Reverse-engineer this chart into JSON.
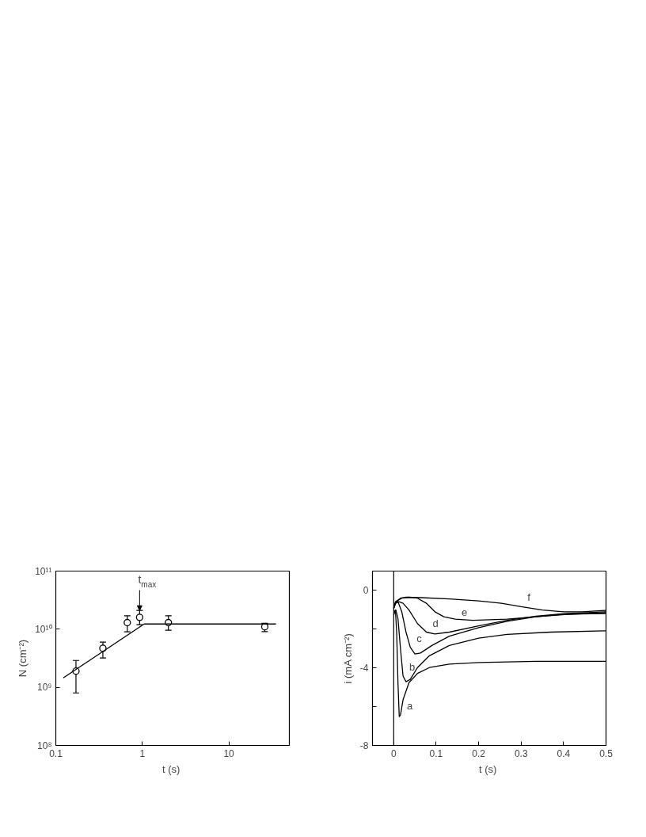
{
  "chart_data": [
    {
      "type": "scatter",
      "xlabel": "t  (s)",
      "ylabel": "N (cm⁻²)",
      "log": "xy",
      "grid": false,
      "xlim": [
        0.1,
        50
      ],
      "ylim": [
        100000000.0,
        100000000000.0
      ],
      "xticks": [
        0.1,
        1,
        10
      ],
      "yticks": [
        {
          "value": 100000000.0,
          "label": "10⁸"
        },
        {
          "value": 1000000000.0,
          "label": "10⁹"
        },
        {
          "value": 10000000000.0,
          "label": "10¹⁰"
        },
        {
          "value": 100000000000.0,
          "label": "10¹¹"
        }
      ],
      "annotations": [
        {
          "text": "t$_{max}$",
          "x": 0.93,
          "y": 21000000000.0
        }
      ],
      "series": [
        {
          "type": "scatter",
          "marker": "circle",
          "color": "#000000",
          "x": [
            0.171,
            0.35,
            0.67,
            0.93,
            2.0,
            26
          ],
          "values": [
            1900000000.0,
            4700000000.0,
            13000000000.0,
            16000000000.0,
            13000000000.0,
            11000000000.0
          ],
          "errors": [
            [
              800000000.0,
              2900000000.0
            ],
            [
              3200000000.0,
              6000000000.0
            ],
            [
              9000000000.0,
              17000000000.0
            ],
            [
              12000000000.0,
              21000000000.0
            ],
            [
              9600000000.0,
              17000000000.0
            ],
            [
              9100000000.0,
              12600000000.0
            ]
          ]
        },
        {
          "type": "line",
          "color": "#000000",
          "x": [
            0.122,
            1.05,
            35
          ],
          "values": [
            1450000000.0,
            12300000000.0,
            12300000000.0
          ]
        }
      ]
    },
    {
      "type": "line",
      "xlabel": "t  (s)",
      "ylabel": "i (mA cm⁻²)",
      "grid": false,
      "line_style": "solid",
      "xlim": [
        -0.05,
        0.5
      ],
      "ylim": [
        -8,
        1
      ],
      "xticks": [
        0,
        0.1,
        0.2,
        0.3,
        0.4,
        0.5
      ],
      "yticks": [
        -8,
        {
          "value": -6,
          "label": null
        },
        -4,
        {
          "value": -2,
          "label": null
        },
        0
      ],
      "ref_lines": [
        {
          "axis": "x",
          "value": 0,
          "color": "#000000"
        }
      ],
      "annotations": [
        {
          "text": "a",
          "x": 0.016,
          "y": -6.42
        },
        {
          "text": "b",
          "x": 0.022,
          "y": -4.42
        },
        {
          "text": "c",
          "x": 0.039,
          "y": -2.93
        },
        {
          "text": "d",
          "x": 0.077,
          "y": -2.15
        },
        {
          "text": "e",
          "x": 0.145,
          "y": -1.48
        },
        {
          "text": "f",
          "x": 0.3,
          "y": -0.84
        }
      ],
      "series": [
        {
          "color": "#000000",
          "x": [
            0,
            0.004,
            0.007,
            0.01,
            0.013,
            0.016,
            0.022,
            0.036,
            0.056,
            0.084,
            0.131,
            0.2,
            0.335,
            0.5
          ],
          "values": [
            -1.27,
            -1.01,
            -2.15,
            -4.76,
            -6.51,
            -6.42,
            -5.64,
            -4.76,
            -4.28,
            -3.98,
            -3.8,
            -3.72,
            -3.66,
            -3.66
          ]
        },
        {
          "color": "#000000",
          "x": [
            0,
            0.002,
            0.005,
            0.01,
            0.016,
            0.022,
            0.029,
            0.039,
            0.056,
            0.084,
            0.131,
            0.2,
            0.267,
            0.37,
            0.5
          ],
          "values": [
            -1.0,
            -1.1,
            -1.01,
            -1.45,
            -3.02,
            -4.42,
            -4.71,
            -4.59,
            -3.98,
            -3.37,
            -2.84,
            -2.46,
            -2.27,
            -2.15,
            -2.08
          ]
        },
        {
          "color": "#000000",
          "x": [
            0,
            0.004,
            0.01,
            0.019,
            0.029,
            0.039,
            0.05,
            0.063,
            0.09,
            0.131,
            0.2,
            0.267,
            0.335,
            0.403,
            0.5
          ],
          "values": [
            -0.92,
            -0.58,
            -0.58,
            -1.1,
            -2.15,
            -2.93,
            -3.28,
            -3.23,
            -2.84,
            -2.36,
            -1.92,
            -1.59,
            -1.36,
            -1.24,
            -1.15
          ]
        },
        {
          "color": "#000000",
          "x": [
            0,
            0.005,
            0.012,
            0.022,
            0.036,
            0.056,
            0.077,
            0.097,
            0.131,
            0.2,
            0.267,
            0.335,
            0.403,
            0.5
          ],
          "values": [
            -0.92,
            -0.66,
            -0.58,
            -0.66,
            -1.01,
            -1.71,
            -2.15,
            -2.25,
            -2.15,
            -1.83,
            -1.54,
            -1.33,
            -1.19,
            -1.1
          ]
        },
        {
          "color": "#000000",
          "x": [
            0,
            0.005,
            0.019,
            0.036,
            0.056,
            0.077,
            0.097,
            0.118,
            0.145,
            0.186,
            0.267,
            0.335,
            0.403,
            0.5
          ],
          "values": [
            -0.92,
            -0.58,
            -0.4,
            -0.35,
            -0.4,
            -0.66,
            -1.1,
            -1.36,
            -1.48,
            -1.54,
            -1.48,
            -1.36,
            -1.22,
            -1.19
          ]
        },
        {
          "color": "#000000",
          "x": [
            0,
            0.005,
            0.016,
            0.029,
            0.063,
            0.131,
            0.2,
            0.254,
            0.3,
            0.35,
            0.4,
            0.444,
            0.5
          ],
          "values": [
            -0.92,
            -0.58,
            -0.4,
            -0.35,
            -0.37,
            -0.44,
            -0.54,
            -0.66,
            -0.84,
            -1.01,
            -1.1,
            -1.1,
            -1.03
          ]
        }
      ]
    }
  ]
}
